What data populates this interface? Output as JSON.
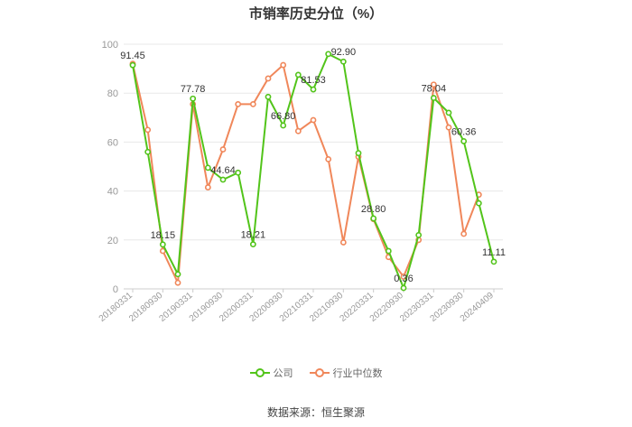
{
  "title": "市销率历史分位（%）",
  "source": "数据来源：恒生聚源",
  "legend": {
    "company": "公司",
    "industry": "行业中位数"
  },
  "colors": {
    "company": "#52c41a",
    "industry": "#f0875a",
    "grid": "#e8e8e8",
    "axis_text": "#999999",
    "label_text": "#333333"
  },
  "chart_data": {
    "type": "line",
    "title": "市销率历史分位（%）",
    "ylim": [
      0,
      100
    ],
    "yticks": [
      0,
      20,
      40,
      60,
      80,
      100
    ],
    "grid": true,
    "legend_position": "bottom",
    "xtick_labels": [
      "20180331",
      "20180930",
      "20190331",
      "20190930",
      "20200331",
      "20200930",
      "20210331",
      "20210930",
      "20220331",
      "20220930",
      "20230331",
      "20230930",
      "20240409"
    ],
    "x": [
      "20180331",
      "20180630",
      "20180930",
      "20181231",
      "20190331",
      "20190630",
      "20190930",
      "20191231",
      "20200331",
      "20200630",
      "20200930",
      "20201231",
      "20210331",
      "20210630",
      "20210930",
      "20211231",
      "20220331",
      "20220630",
      "20220930",
      "20221231",
      "20230331",
      "20230630",
      "20230930",
      "20231231",
      "20240409"
    ],
    "series": [
      {
        "name": "公司",
        "values": [
          91.45,
          56,
          18.15,
          6,
          77.78,
          49.5,
          44.64,
          47.5,
          18.21,
          78.5,
          66.8,
          87.5,
          81.53,
          96,
          92.9,
          55.5,
          28.8,
          15.5,
          0.36,
          22,
          78.04,
          72,
          60.36,
          35,
          11.11
        ],
        "labels": {
          "0": "91.45",
          "2": "18.15",
          "4": "77.78",
          "6": "44.64",
          "8": "18.21",
          "10": "66.80",
          "12": "81.53",
          "14": "92.90",
          "16": "28.80",
          "18": "0.36",
          "20": "78.04",
          "22": "60.36",
          "24": "11.11"
        }
      },
      {
        "name": "行业中位数",
        "values": [
          92,
          65,
          15.5,
          2.5,
          75.5,
          41.5,
          57,
          75.5,
          75.5,
          86,
          91.5,
          64.5,
          69,
          53,
          19,
          54,
          28.5,
          13,
          5,
          20,
          83.5,
          66,
          22.5,
          38.5,
          null
        ]
      }
    ]
  }
}
